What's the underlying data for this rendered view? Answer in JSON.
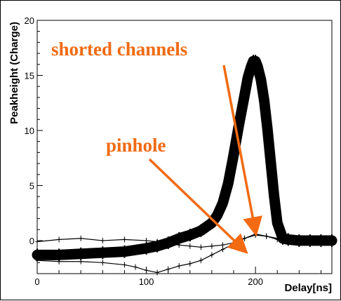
{
  "chart_data": {
    "type": "line",
    "title": "",
    "xlabel": "Delay[ns]",
    "ylabel": "Peakheight (Charge)",
    "xlim": [
      0,
      270
    ],
    "ylim": [
      -3,
      20
    ],
    "x_ticks": [
      0,
      100,
      200
    ],
    "y_ticks": [
      0,
      5,
      10,
      15,
      20
    ],
    "grid": false,
    "series": [
      {
        "style": "thick-band",
        "x": [
          0,
          20,
          40,
          60,
          80,
          100,
          110,
          120,
          130,
          140,
          150,
          160,
          165,
          170,
          175,
          180,
          185,
          190,
          193,
          196,
          198,
          200,
          202,
          205,
          208,
          211,
          214,
          217,
          220,
          225,
          230,
          240,
          250,
          260,
          270
        ],
        "values": [
          -1.3,
          -1.3,
          -1.2,
          -1.1,
          -1.0,
          -0.7,
          -0.5,
          -0.2,
          0.2,
          0.5,
          0.9,
          1.6,
          2.3,
          3.4,
          5.2,
          7.8,
          10.6,
          13.2,
          14.8,
          15.8,
          16.3,
          16.3,
          15.8,
          14.6,
          12.7,
          10.1,
          7.1,
          4.1,
          1.6,
          0.2,
          0.1,
          0.0,
          0.0,
          0.0,
          0.0
        ]
      },
      {
        "style": "thin",
        "x": [
          0,
          20,
          40,
          60,
          80,
          100,
          110,
          120,
          130,
          140,
          150,
          160,
          170,
          180,
          190,
          200,
          210,
          220,
          230,
          240,
          250,
          260,
          270
        ],
        "values": [
          -0.1,
          0.1,
          0.2,
          0.0,
          0.1,
          0.0,
          -0.1,
          -0.3,
          -0.4,
          -0.5,
          -0.6,
          -0.5,
          -0.4,
          -0.2,
          0.2,
          0.5,
          0.4,
          0.2,
          0.1,
          0.0,
          0.1,
          0.1,
          0.0
        ]
      },
      {
        "style": "thin",
        "x": [
          0,
          20,
          40,
          60,
          80,
          90,
          100,
          110,
          120,
          130,
          140,
          150,
          160,
          170,
          180,
          190,
          200,
          210,
          220,
          230,
          240,
          250,
          260,
          270
        ],
        "values": [
          -1.8,
          -1.9,
          -1.9,
          -2.0,
          -2.2,
          -2.4,
          -2.7,
          -2.9,
          -2.6,
          -2.3,
          -2.1,
          -1.8,
          -1.3,
          -0.8,
          -0.3,
          0.2,
          0.6,
          0.4,
          0.1,
          0.0,
          0.0,
          0.1,
          0.0,
          0.0
        ]
      }
    ],
    "annotations": [
      {
        "text": "shorted channels",
        "color": "#f26a12",
        "arrow_to": [
          200,
          0.8
        ]
      },
      {
        "text": "pinhole",
        "color": "#f26a12",
        "arrow_to": [
          190,
          -0.9
        ]
      }
    ]
  }
}
